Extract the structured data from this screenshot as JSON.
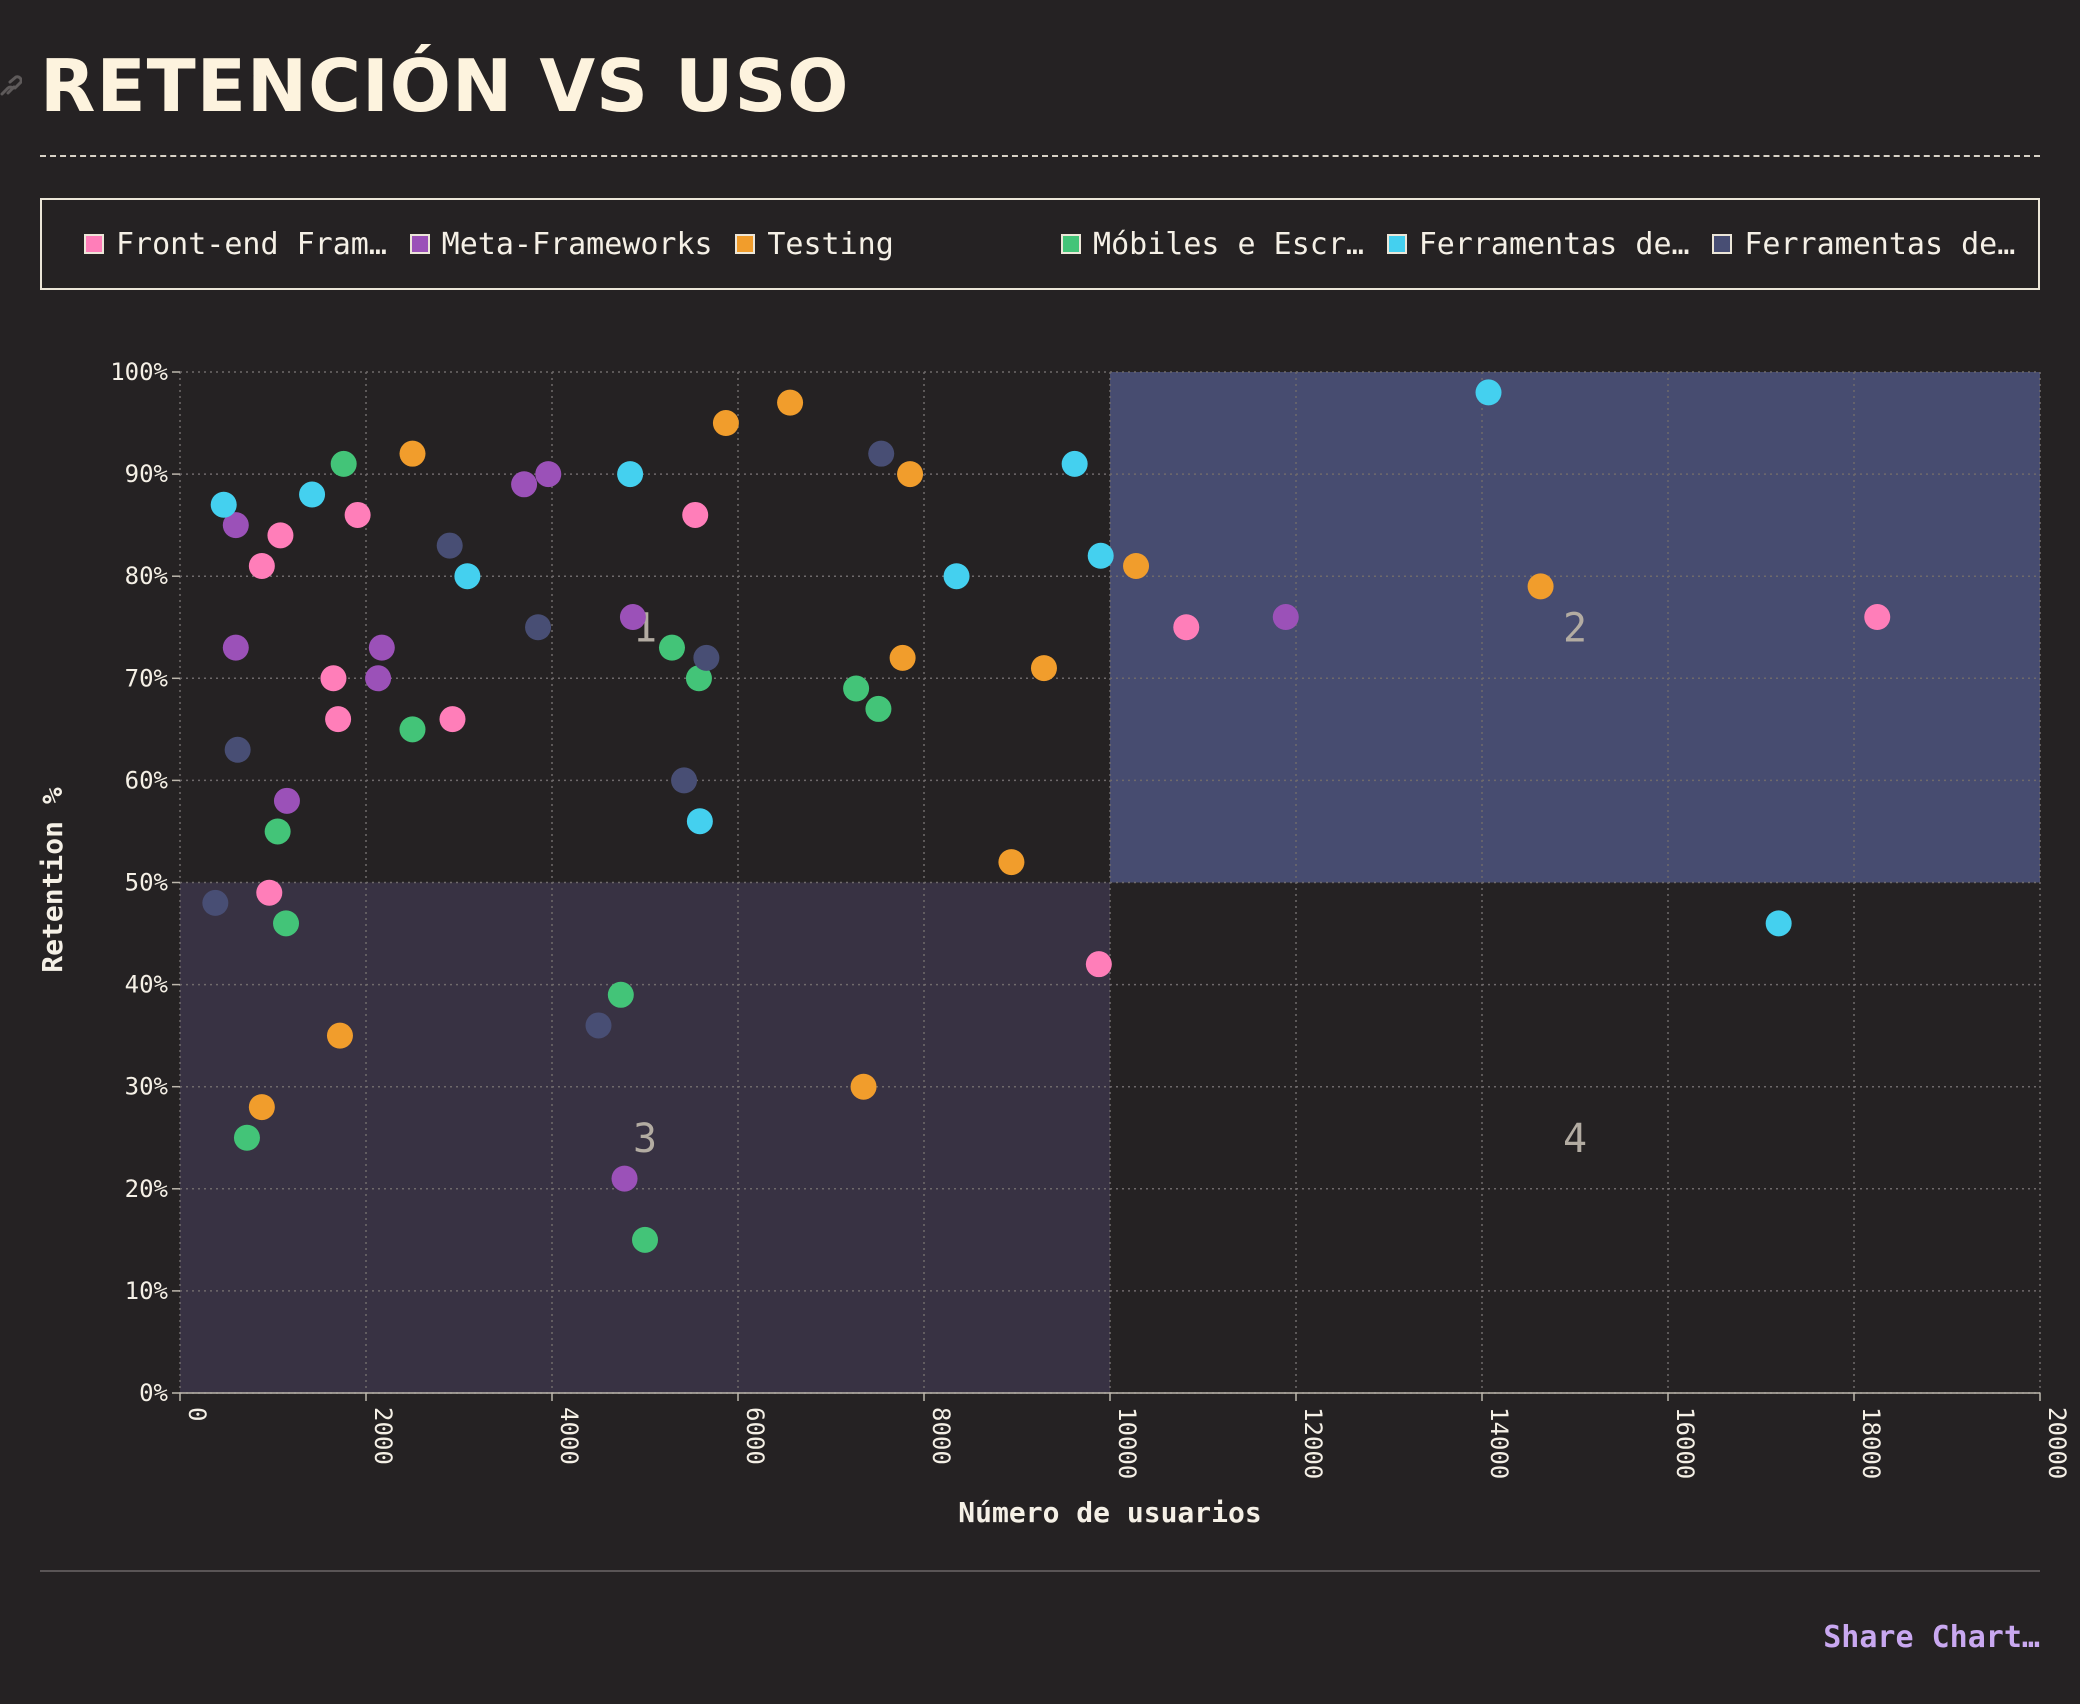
{
  "title": "RETENCIÓN VS USO",
  "share_label": "Share Chart…",
  "legend": [
    {
      "label": "Front-end Fram…",
      "color": "#ff7eb9"
    },
    {
      "label": "Meta-Frameworks",
      "color": "#9b51b8"
    },
    {
      "label": "Testing",
      "color": "#f19d2c"
    },
    {
      "label": "Móbiles e Escr…",
      "color": "#43c478"
    },
    {
      "label": "Ferramentas de…",
      "color": "#44d0ef"
    },
    {
      "label": "Ferramentas de…",
      "color": "#484e74"
    }
  ],
  "chart_data": {
    "type": "scatter",
    "xlabel": "Número de usuarios",
    "ylabel": "Retention %",
    "xlim": [
      0,
      20000
    ],
    "ylim": [
      0,
      100
    ],
    "x_ticks": [
      "0",
      "2000",
      "4000",
      "6000",
      "8000",
      "10000",
      "12000",
      "14000",
      "16000",
      "18000",
      "20000"
    ],
    "y_ticks": [
      "0%",
      "10%",
      "20%",
      "30%",
      "40%",
      "50%",
      "60%",
      "70%",
      "80%",
      "90%",
      "100%"
    ],
    "grid": true,
    "quadrants": [
      {
        "label": "1",
        "x": [
          0,
          10000
        ],
        "y": [
          50,
          100
        ],
        "fill": "none"
      },
      {
        "label": "2",
        "x": [
          10000,
          20000
        ],
        "y": [
          50,
          100
        ],
        "fill": "#474c70"
      },
      {
        "label": "3",
        "x": [
          0,
          10000
        ],
        "y": [
          0,
          50
        ],
        "fill": "#383243"
      },
      {
        "label": "4",
        "x": [
          10000,
          20000
        ],
        "y": [
          0,
          50
        ],
        "fill": "none"
      }
    ],
    "series": [
      {
        "name": "Front-end Fram…",
        "color": "#ff7eb9",
        "points": [
          [
            880,
            81
          ],
          [
            1080,
            84
          ],
          [
            1910,
            86
          ],
          [
            1650,
            70
          ],
          [
            1700,
            66
          ],
          [
            2930,
            66
          ],
          [
            5540,
            86
          ],
          [
            960,
            49
          ],
          [
            9880,
            42
          ],
          [
            10820,
            75
          ],
          [
            18250,
            76
          ]
        ]
      },
      {
        "name": "Meta-Frameworks",
        "color": "#9b51b8",
        "points": [
          [
            600,
            85
          ],
          [
            600,
            73
          ],
          [
            2170,
            73
          ],
          [
            2130,
            70
          ],
          [
            3700,
            89
          ],
          [
            3960,
            90
          ],
          [
            4870,
            76
          ],
          [
            1150,
            58
          ],
          [
            4780,
            21
          ],
          [
            11890,
            76
          ]
        ]
      },
      {
        "name": "Testing",
        "color": "#f19d2c",
        "points": [
          [
            2500,
            92
          ],
          [
            5870,
            95
          ],
          [
            6560,
            97
          ],
          [
            7850,
            90
          ],
          [
            7770,
            72
          ],
          [
            9290,
            71
          ],
          [
            10280,
            81
          ],
          [
            14630,
            79
          ],
          [
            8940,
            52
          ],
          [
            1720,
            35
          ],
          [
            880,
            28
          ],
          [
            7350,
            30
          ]
        ]
      },
      {
        "name": "Móbiles e Escr…",
        "color": "#43c478",
        "points": [
          [
            1760,
            91
          ],
          [
            2500,
            65
          ],
          [
            5290,
            73
          ],
          [
            5580,
            70
          ],
          [
            7270,
            69
          ],
          [
            7510,
            67
          ],
          [
            1050,
            55
          ],
          [
            1140,
            46
          ],
          [
            4740,
            39
          ],
          [
            720,
            25
          ],
          [
            5000,
            15
          ]
        ]
      },
      {
        "name": "Ferramentas de…",
        "color": "#44d0ef",
        "points": [
          [
            470,
            87
          ],
          [
            1420,
            88
          ],
          [
            3090,
            80
          ],
          [
            4840,
            90
          ],
          [
            8350,
            80
          ],
          [
            9620,
            91
          ],
          [
            9900,
            82
          ],
          [
            14070,
            98
          ],
          [
            5590,
            56
          ],
          [
            17190,
            46
          ]
        ]
      },
      {
        "name": "Ferramentas de…",
        "color": "#484e74",
        "points": [
          [
            620,
            63
          ],
          [
            2900,
            83
          ],
          [
            3850,
            75
          ],
          [
            7540,
            92
          ],
          [
            5660,
            72
          ],
          [
            5420,
            60
          ],
          [
            380,
            48
          ],
          [
            4500,
            36
          ]
        ]
      }
    ]
  }
}
